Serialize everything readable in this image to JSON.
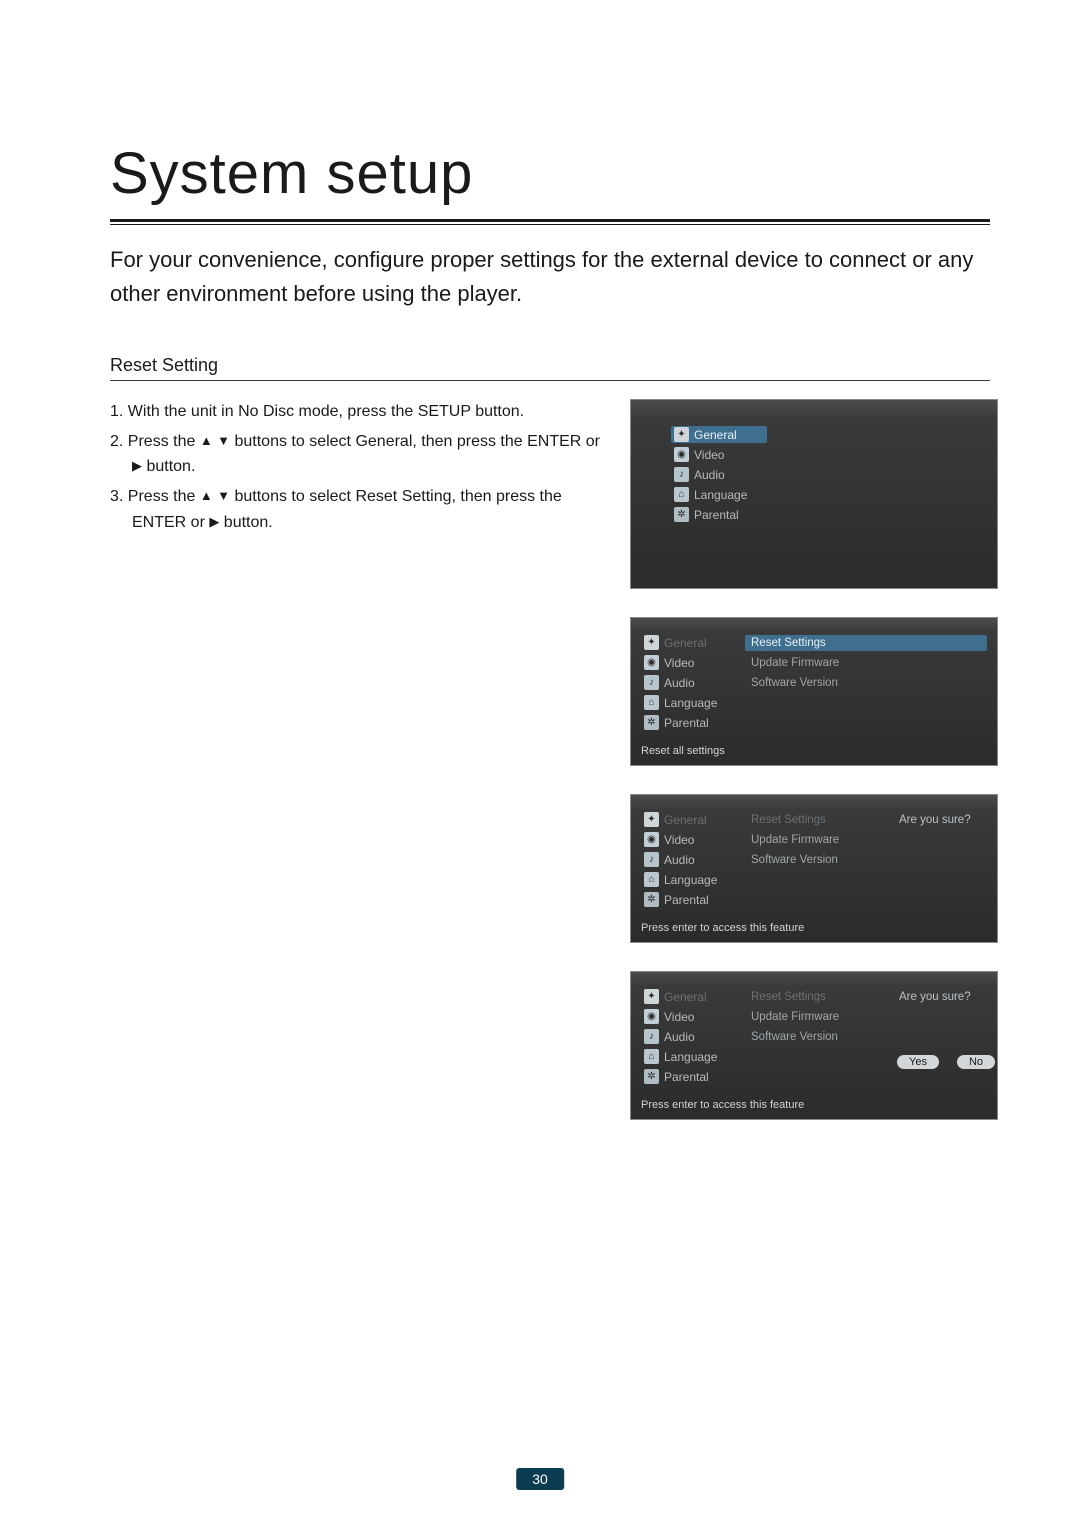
{
  "title": "System setup",
  "intro": "For your convenience, configure proper settings for the external device to connect or any other environment before using the player.",
  "section": "Reset Setting",
  "steps": {
    "s1": "1. With the unit in No Disc mode, press the SETUP button.",
    "s2a": "2. Press the ",
    "s2b": " buttons to select General, then press the ENTER or ",
    "s2c": " button.",
    "s3a": "3. Press the ",
    "s3b": " buttons to select Reset Setting, then press the ENTER or ",
    "s3c": " button."
  },
  "arrows": {
    "up": "▲",
    "down": "▼",
    "right": "▶"
  },
  "menu": {
    "general": "General",
    "video": "Video",
    "audio": "Audio",
    "language": "Language",
    "parental": "Parental"
  },
  "sub": {
    "reset": "Reset Settings",
    "update": "Update Firmware",
    "version": "Software Version"
  },
  "hints": {
    "resetAll": "Reset all settings",
    "pressEnter": "Press enter to access this feature"
  },
  "prompt": "Are you sure?",
  "yes": "Yes",
  "no": "No",
  "page": "30",
  "colors": {
    "page_badge_bg": "#0b3c52",
    "menu_sel_bg": "#3f6f8f",
    "screen_border": "#888888",
    "text_primary": "#1a1a1a",
    "screen_grad_top": "#4c4c4c",
    "screen_grad_mid": "#3a3a3a",
    "screen_grad_bot": "#2b2b2b",
    "menu_text": "#b9b9b9",
    "sub_text": "#9fa6ab",
    "dim_text": "#6a7075",
    "btn_bg": "#d2d6d9"
  },
  "icons": {
    "general": "✦",
    "video": "◉",
    "audio": "♪",
    "language": "⌂",
    "parental": "✲"
  }
}
